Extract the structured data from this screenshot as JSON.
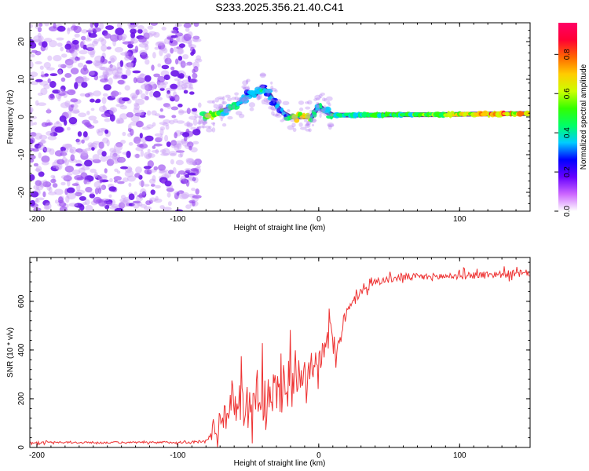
{
  "title": "S233.2025.356.21.40.C41",
  "chart_data": [
    {
      "type": "heatmap",
      "xlabel": "Height of straight line (km)",
      "ylabel": "Frequency (Hz)",
      "xlim": [
        -205,
        150
      ],
      "ylim": [
        -25,
        25
      ],
      "xticks": [
        -200,
        -100,
        0,
        100
      ],
      "yticks": [
        -20,
        -10,
        0,
        10,
        20
      ],
      "colorbar": {
        "label": "Normalized spectral amplitude",
        "range": [
          0,
          1
        ],
        "ticks": [
          "0.0",
          "0.2",
          "0.4",
          "0.6",
          "0.8"
        ],
        "colors": [
          "#ffffff",
          "#cc66ff",
          "#6600ff",
          "#0000ff",
          "#00ccff",
          "#00ff66",
          "#33ff00",
          "#ccff00",
          "#ffcc00",
          "#ff6600",
          "#ff0033",
          "#ff0066"
        ]
      },
      "noise_region_x": [
        -205,
        -85
      ],
      "signal_track": {
        "x": [
          -82,
          -75,
          -65,
          -55,
          -50,
          -45,
          -40,
          -35,
          -30,
          -25,
          -20,
          -15,
          -10,
          -5,
          0,
          5,
          10,
          20,
          40,
          60,
          80,
          100,
          120,
          150
        ],
        "frequency": [
          0.5,
          0.5,
          2,
          4,
          6,
          6,
          8,
          6,
          3,
          1,
          0,
          0,
          0,
          0,
          3,
          1.5,
          0.5,
          0.5,
          0.5,
          0.6,
          0.6,
          0.7,
          0.8,
          0.9
        ],
        "amplitude": [
          0.5,
          0.7,
          0.4,
          0.45,
          0.35,
          0.4,
          0.45,
          0.35,
          0.35,
          0.4,
          0.5,
          0.7,
          0.75,
          0.5,
          0.4,
          0.45,
          0.55,
          0.5,
          0.5,
          0.55,
          0.6,
          0.7,
          0.8,
          0.8
        ]
      }
    },
    {
      "type": "line",
      "xlabel": "Height of straight line (km)",
      "ylabel": "SNR (10 * v/v)",
      "xlim": [
        -205,
        150
      ],
      "ylim": [
        0,
        780
      ],
      "xticks": [
        -200,
        -100,
        0,
        100
      ],
      "yticks": [
        0,
        200,
        400,
        600
      ],
      "color": "#ee3333",
      "series": [
        {
          "name": "SNR",
          "x": [
            -205,
            -180,
            -150,
            -120,
            -90,
            -80,
            -75,
            -70,
            -65,
            -60,
            -55,
            -50,
            -45,
            -40,
            -35,
            -30,
            -25,
            -20,
            -15,
            -10,
            -5,
            0,
            5,
            8,
            10,
            12,
            15,
            20,
            25,
            30,
            40,
            50,
            60,
            80,
            100,
            120,
            150
          ],
          "y": [
            20,
            20,
            20,
            20,
            22,
            25,
            60,
            110,
            150,
            200,
            190,
            160,
            230,
            220,
            170,
            230,
            260,
            270,
            300,
            330,
            340,
            360,
            400,
            480,
            450,
            350,
            480,
            550,
            600,
            640,
            680,
            690,
            700,
            700,
            705,
            710,
            715
          ],
          "noise_amplitude": [
            8,
            8,
            8,
            8,
            10,
            15,
            60,
            110,
            150,
            200,
            200,
            170,
            230,
            220,
            200,
            230,
            230,
            200,
            180,
            150,
            120,
            110,
            100,
            130,
            120,
            100,
            80,
            60,
            40,
            35,
            30,
            30,
            30,
            30,
            30,
            30,
            30
          ]
        }
      ]
    }
  ]
}
